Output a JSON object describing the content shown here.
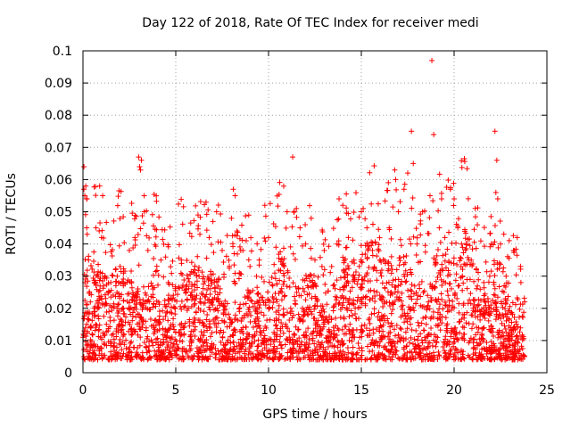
{
  "chart_data": {
    "type": "scatter",
    "title": "Day 122 of 2018, Rate Of TEC Index for receiver medi",
    "xlabel": "GPS time / hours",
    "ylabel": "ROTI / TECUs",
    "xlim": [
      0,
      25
    ],
    "ylim": [
      0,
      0.1
    ],
    "xticks": [
      "0",
      "5",
      "10",
      "15",
      "20",
      "25"
    ],
    "yticks": [
      "0",
      "0.01",
      "0.02",
      "0.03",
      "0.04",
      "0.05",
      "0.06",
      "0.07",
      "0.08",
      "0.09",
      "0.1"
    ],
    "grid": true,
    "marker": "+",
    "series": [
      {
        "name": "ROTI",
        "color": "#ff0000",
        "note": "dense band of points mostly between 0.005 and 0.025 TECU across 0-23.8 h",
        "points": [
          [
            0.05,
            0.064
          ],
          [
            0.05,
            0.057
          ],
          [
            0.1,
            0.055
          ],
          [
            0.15,
            0.058
          ],
          [
            0.2,
            0.045
          ],
          [
            0.3,
            0.035
          ],
          [
            0.4,
            0.022
          ],
          [
            0.9,
            0.058
          ],
          [
            0.7,
            0.045
          ],
          [
            1.0,
            0.042
          ],
          [
            1.2,
            0.03
          ],
          [
            1.5,
            0.028
          ],
          [
            2.0,
            0.033
          ],
          [
            2.5,
            0.038
          ],
          [
            2.8,
            0.042
          ],
          [
            3.0,
            0.067
          ],
          [
            3.05,
            0.064
          ],
          [
            3.1,
            0.063
          ],
          [
            3.15,
            0.066
          ],
          [
            3.3,
            0.055
          ],
          [
            3.3,
            0.05
          ],
          [
            3.5,
            0.038
          ],
          [
            4.2,
            0.035
          ],
          [
            4.6,
            0.028
          ],
          [
            5.3,
            0.035
          ],
          [
            6.0,
            0.032
          ],
          [
            6.2,
            0.049
          ],
          [
            6.3,
            0.043
          ],
          [
            6.8,
            0.042
          ],
          [
            7.0,
            0.047
          ],
          [
            7.2,
            0.05
          ],
          [
            7.5,
            0.038
          ],
          [
            8.0,
            0.048
          ],
          [
            8.1,
            0.057
          ],
          [
            8.2,
            0.055
          ],
          [
            8.3,
            0.044
          ],
          [
            8.5,
            0.038
          ],
          [
            9.0,
            0.033
          ],
          [
            9.5,
            0.035
          ],
          [
            9.8,
            0.052
          ],
          [
            10.0,
            0.042
          ],
          [
            10.4,
            0.039
          ],
          [
            10.8,
            0.034
          ],
          [
            11.0,
            0.05
          ],
          [
            11.3,
            0.067
          ],
          [
            11.5,
            0.051
          ],
          [
            11.7,
            0.045
          ],
          [
            12.0,
            0.04
          ],
          [
            12.3,
            0.048
          ],
          [
            12.5,
            0.035
          ],
          [
            13.0,
            0.038
          ],
          [
            13.4,
            0.033
          ],
          [
            13.8,
            0.054
          ],
          [
            14.0,
            0.052
          ],
          [
            14.3,
            0.042
          ],
          [
            14.6,
            0.035
          ],
          [
            15.0,
            0.05
          ],
          [
            15.1,
            0.051
          ],
          [
            15.3,
            0.045
          ],
          [
            15.6,
            0.038
          ],
          [
            16.0,
            0.035
          ],
          [
            16.5,
            0.045
          ],
          [
            16.8,
            0.063
          ],
          [
            16.85,
            0.06
          ],
          [
            17.0,
            0.05
          ],
          [
            17.3,
            0.057
          ],
          [
            17.5,
            0.062
          ],
          [
            17.7,
            0.075
          ],
          [
            17.8,
            0.065
          ],
          [
            18.0,
            0.04
          ],
          [
            18.3,
            0.05
          ],
          [
            18.7,
            0.055
          ],
          [
            18.8,
            0.097
          ],
          [
            18.9,
            0.074
          ],
          [
            19.2,
            0.045
          ],
          [
            19.5,
            0.042
          ],
          [
            19.8,
            0.057
          ],
          [
            20.0,
            0.054
          ],
          [
            20.2,
            0.045
          ],
          [
            20.4,
            0.04
          ],
          [
            20.8,
            0.035
          ],
          [
            21.2,
            0.032
          ],
          [
            21.6,
            0.028
          ],
          [
            22.0,
            0.04
          ],
          [
            22.2,
            0.075
          ],
          [
            22.3,
            0.066
          ],
          [
            22.25,
            0.056
          ],
          [
            22.35,
            0.054
          ],
          [
            22.5,
            0.04
          ],
          [
            22.8,
            0.03
          ],
          [
            23.2,
            0.038
          ],
          [
            23.4,
            0.042
          ],
          [
            23.6,
            0.028
          ],
          [
            23.8,
            0.022
          ]
        ]
      }
    ]
  }
}
